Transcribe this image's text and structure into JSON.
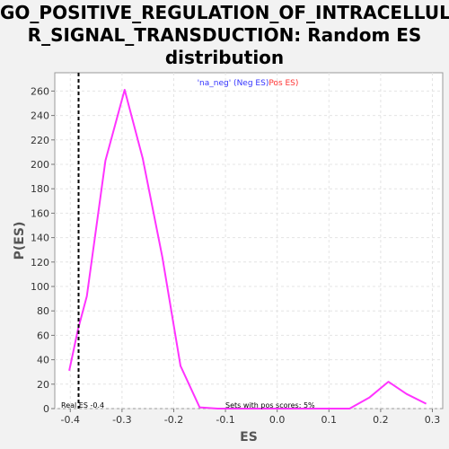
{
  "title_lines": [
    "GO_POSITIVE_REGULATION_OF_INTRACELLULA",
    "R_SIGNAL_TRANSDUCTION: Random ES",
    "distribution"
  ],
  "chart_data": {
    "type": "line",
    "title": "GO_POSITIVE_REGULATION_OF_INTRACELLULAR_SIGNAL_TRANSDUCTION: Random ES distribution",
    "xlabel": "ES",
    "ylabel": "P(ES)",
    "xlim": [
      -0.43,
      0.32
    ],
    "ylim": [
      0,
      275
    ],
    "x_ticks": [
      "-0.4",
      "-0.3",
      "-0.2",
      "-0.1",
      "0.0",
      "0.1",
      "0.2",
      "0.3"
    ],
    "y_ticks": [
      "0",
      "20",
      "40",
      "60",
      "80",
      "100",
      "120",
      "140",
      "160",
      "180",
      "200",
      "220",
      "240",
      "260"
    ],
    "legend": {
      "neg": "'na_neg' (Neg ES)",
      "pos": "Pos ES)",
      "neg_color": "#3333ff",
      "pos_color": "#ff3333"
    },
    "series": [
      {
        "color": "#ff33ff",
        "x": [
          -0.402,
          -0.385,
          -0.368,
          -0.332,
          -0.295,
          -0.26,
          -0.222,
          -0.187,
          -0.15,
          -0.115,
          -0.08,
          -0.045,
          -0.01,
          0.025,
          0.06,
          0.095,
          0.14,
          0.178,
          0.215,
          0.25,
          0.288
        ],
        "y": [
          31,
          65,
          92,
          203,
          261,
          205,
          124,
          35,
          1,
          0,
          0,
          0,
          0,
          0,
          0,
          0,
          0,
          9,
          22,
          12,
          4
        ]
      }
    ],
    "real_es": {
      "value": -0.384,
      "label": "Real ES -0.4"
    },
    "annotation": "Sets with pos scores: 5%",
    "grid": true
  }
}
